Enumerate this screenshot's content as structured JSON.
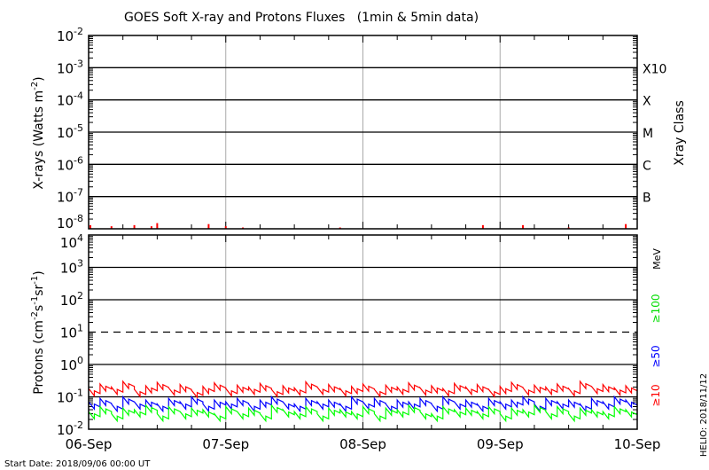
{
  "chart_data": [
    {
      "type": "line",
      "title": "GOES Soft X-ray and Protons Fluxes   (1min & 5min data)",
      "ylabel": "X-rays (Watts m^-2)",
      "yscale": "log",
      "ylim": [
        1e-08,
        0.01
      ],
      "ytick_labels": [
        "10-8",
        "10-7",
        "10-6",
        "10-5",
        "10-4",
        "10-3",
        "10-2"
      ],
      "right_axis_label": "Xray Class",
      "class_labels": [
        {
          "label": "B",
          "level": 1e-07
        },
        {
          "label": "C",
          "level": 1e-06
        },
        {
          "label": "M",
          "level": 1e-05
        },
        {
          "label": "X",
          "level": 0.0001
        },
        {
          "label": "X10",
          "level": 0.001
        }
      ],
      "grid": true,
      "series": [
        {
          "color": "#ff0000",
          "x_hours": [
            0.3,
            4,
            8,
            11,
            12,
            21,
            24,
            27,
            44,
            69,
            76,
            84,
            94
          ],
          "values": [
            1.3e-08,
            1.2e-08,
            1.3e-08,
            1.2e-08,
            1.5e-08,
            1.4e-08,
            1.2e-08,
            1.1e-08,
            1.1e-08,
            1.3e-08,
            1.3e-08,
            1.1e-08,
            1.4e-08
          ]
        }
      ]
    },
    {
      "type": "line",
      "ylabel": "Protons (cm^-2 s^-1 sr^-1)",
      "yscale": "log",
      "ylim": [
        0.01,
        10000
      ],
      "ytick_labels": [
        "10-2",
        "10-1",
        "100",
        "101",
        "102",
        "103",
        "104"
      ],
      "threshold_dashed": 10,
      "unit_label": "MeV",
      "x_tick_labels": [
        "06-Sep",
        "07-Sep",
        "08-Sep",
        "09-Sep",
        "10-Sep"
      ],
      "grid": true,
      "series": [
        {
          "name": "≥10",
          "color": "#ff0000",
          "values": [
            0.18,
            0.25,
            0.2,
            0.3,
            0.17,
            0.22,
            0.28,
            0.19,
            0.24,
            0.16,
            0.21,
            0.27,
            0.18,
            0.23,
            0.2,
            0.26,
            0.17,
            0.22,
            0.19,
            0.29,
            0.2,
            0.24,
            0.18,
            0.21,
            0.25,
            0.17,
            0.23,
            0.2,
            0.27,
            0.19,
            0.22,
            0.18,
            0.26,
            0.2,
            0.24,
            0.17,
            0.21,
            0.28,
            0.19,
            0.23,
            0.2,
            0.25,
            0.18,
            0.3,
            0.21,
            0.24,
            0.19,
            0.22
          ]
        },
        {
          "name": "≥50",
          "color": "#0000ff",
          "values": [
            0.07,
            0.09,
            0.06,
            0.1,
            0.07,
            0.08,
            0.06,
            0.09,
            0.07,
            0.1,
            0.06,
            0.08,
            0.07,
            0.09,
            0.06,
            0.08,
            0.1,
            0.07,
            0.06,
            0.09,
            0.07,
            0.08,
            0.06,
            0.1,
            0.07,
            0.09,
            0.06,
            0.08,
            0.07,
            0.09,
            0.06,
            0.1,
            0.07,
            0.08,
            0.06,
            0.09,
            0.07,
            0.08,
            0.1,
            0.06,
            0.09,
            0.07,
            0.08,
            0.06,
            0.09,
            0.07,
            0.1,
            0.08
          ]
        },
        {
          "name": "≥100",
          "color": "#00ff00",
          "values": [
            0.035,
            0.05,
            0.03,
            0.045,
            0.04,
            0.055,
            0.03,
            0.05,
            0.035,
            0.045,
            0.04,
            0.03,
            0.05,
            0.035,
            0.045,
            0.03,
            0.055,
            0.04,
            0.035,
            0.05,
            0.03,
            0.045,
            0.04,
            0.035,
            0.05,
            0.03,
            0.045,
            0.04,
            0.055,
            0.035,
            0.03,
            0.05,
            0.04,
            0.045,
            0.035,
            0.05,
            0.03,
            0.045,
            0.04,
            0.055,
            0.035,
            0.05,
            0.03,
            0.045,
            0.04,
            0.035,
            0.05,
            0.04
          ]
        }
      ]
    }
  ],
  "footer": {
    "start_date": "Start Date: 2018/09/06 00:00 UT",
    "credit": "HELIO: 2018/11/12"
  }
}
